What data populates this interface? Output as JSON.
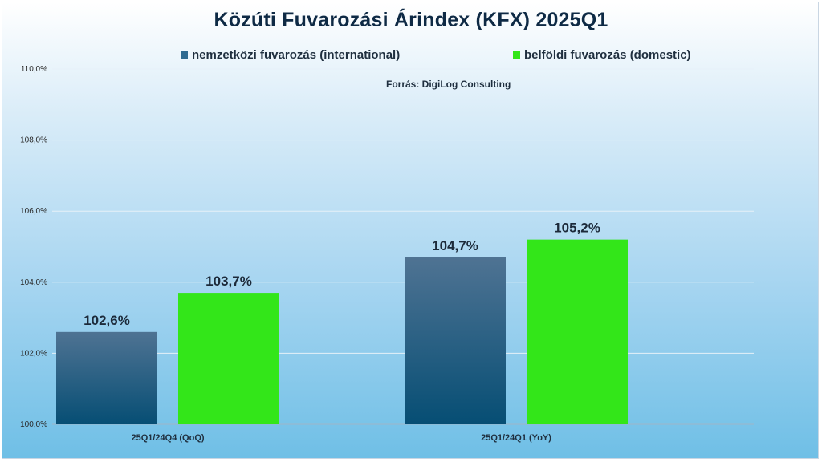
{
  "title": "Közúti Fuvarozási Árindex (KFX) 2025Q1",
  "source": "Forrás: DigiLog Consulting",
  "colors": {
    "international_top": "#4f7393",
    "international_bottom": "#064e74",
    "domestic": "#33e619",
    "gridline": "#e6f1f8"
  },
  "chart_data": {
    "type": "bar",
    "title": "Közúti Fuvarozási Árindex (KFX) 2025Q1",
    "categories": [
      "25Q1/24Q4 (QoQ)",
      "25Q1/24Q1 (YoY)"
    ],
    "series": [
      {
        "name": "nemzetközi fuvarozás (international)",
        "values": [
          102.6,
          104.7
        ],
        "labels": [
          "102,6%",
          "104,7%"
        ]
      },
      {
        "name": "belföldi fuvarozás (domestic)",
        "values": [
          103.7,
          105.2
        ],
        "labels": [
          "103,7%",
          "105,2%"
        ]
      }
    ],
    "ylim": [
      100,
      110
    ],
    "yticks": [
      100,
      102,
      104,
      106,
      108,
      110
    ],
    "ytick_labels": [
      "100,0%",
      "102,0%",
      "104,0%",
      "106,0%",
      "108,0%",
      "110,0%"
    ],
    "grid": true,
    "legend": "top"
  }
}
